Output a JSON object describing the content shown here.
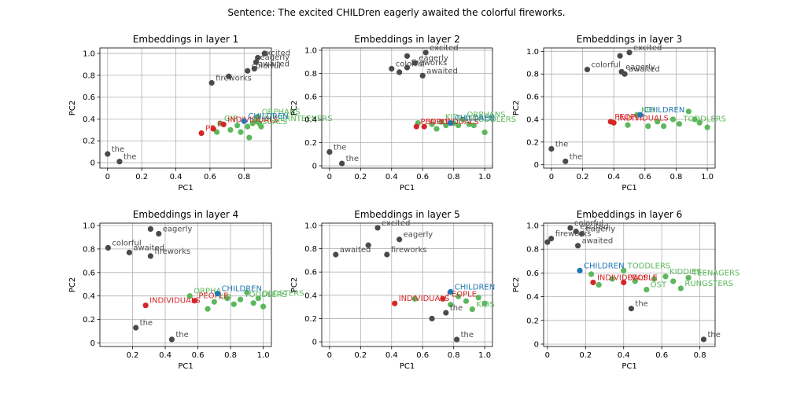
{
  "suptitle": "Sentence: The excited CHILDren eagerly awaited the colorful fireworks.",
  "colors": {
    "sentence": "#4a4a4a",
    "neighbor": "#5cb85c",
    "focus": "#1f77b4",
    "contrast": "#d62728",
    "grid": "#b0b0b0"
  },
  "chart_data": [
    {
      "type": "scatter",
      "title": "Embeddings in layer 1",
      "xlabel": "PC1",
      "ylabel": "PC2",
      "xlim": [
        -0.045,
        0.96
      ],
      "ylim": [
        -0.05,
        1.05
      ],
      "xticks": [
        0,
        0.2,
        0.4,
        0.6,
        0.8
      ],
      "yticks": [
        0,
        0.2,
        0.4,
        0.6,
        0.8,
        1.0
      ],
      "grid": true,
      "points": [
        {
          "x": 0.0,
          "y": 0.08,
          "g": "sentence",
          "label": "the"
        },
        {
          "x": 0.07,
          "y": 0.01,
          "g": "sentence",
          "label": "the"
        },
        {
          "x": 0.61,
          "y": 0.73,
          "g": "sentence",
          "label": "fireworks"
        },
        {
          "x": 0.71,
          "y": 0.79,
          "g": "sentence",
          "label": ""
        },
        {
          "x": 0.82,
          "y": 0.84,
          "g": "sentence",
          "label": "colorful"
        },
        {
          "x": 0.88,
          "y": 0.96,
          "g": "sentence",
          "label": "excited"
        },
        {
          "x": 0.92,
          "y": 1.0,
          "g": "sentence",
          "label": ""
        },
        {
          "x": 0.86,
          "y": 0.86,
          "g": "sentence",
          "label": "awaited"
        },
        {
          "x": 0.87,
          "y": 0.92,
          "g": "sentence",
          "label": "eagerly"
        },
        {
          "x": 0.55,
          "y": 0.27,
          "g": "contrast",
          "label": "PE"
        },
        {
          "x": 0.62,
          "y": 0.31,
          "g": "contrast",
          "label": "P"
        },
        {
          "x": 0.68,
          "y": 0.35,
          "g": "contrast",
          "label": "INDIVIDUALS"
        },
        {
          "x": 0.64,
          "y": 0.28,
          "g": "neighbor",
          "label": ""
        },
        {
          "x": 0.66,
          "y": 0.36,
          "g": "neighbor",
          "label": "GIR"
        },
        {
          "x": 0.72,
          "y": 0.3,
          "g": "neighbor",
          "label": ""
        },
        {
          "x": 0.76,
          "y": 0.34,
          "g": "neighbor",
          "label": ""
        },
        {
          "x": 0.78,
          "y": 0.28,
          "g": "neighbor",
          "label": ""
        },
        {
          "x": 0.82,
          "y": 0.33,
          "g": "neighbor",
          "label": "RASCALS"
        },
        {
          "x": 0.83,
          "y": 0.23,
          "g": "neighbor",
          "label": ""
        },
        {
          "x": 0.85,
          "y": 0.36,
          "g": "neighbor",
          "label": ""
        },
        {
          "x": 0.87,
          "y": 0.38,
          "g": "neighbor",
          "label": ""
        },
        {
          "x": 0.88,
          "y": 0.42,
          "g": "neighbor",
          "label": "ORPHANS"
        },
        {
          "x": 0.89,
          "y": 0.36,
          "g": "neighbor",
          "label": "OLDERNTEENERS"
        },
        {
          "x": 0.9,
          "y": 0.33,
          "g": "neighbor",
          "label": ""
        },
        {
          "x": 0.8,
          "y": 0.38,
          "g": "focus",
          "label": "CHILDREN"
        }
      ]
    },
    {
      "type": "scatter",
      "title": "Embeddings in layer 2",
      "xlabel": "PC1",
      "ylabel": "PC2",
      "xlim": [
        -0.05,
        1.05
      ],
      "ylim": [
        -0.02,
        1.02
      ],
      "xticks": [
        0,
        0.2,
        0.4,
        0.6,
        0.8,
        1.0
      ],
      "yticks": [
        0,
        0.2,
        0.4,
        0.6,
        0.8,
        1.0
      ],
      "grid": true,
      "points": [
        {
          "x": 0.0,
          "y": 0.12,
          "g": "sentence",
          "label": "the"
        },
        {
          "x": 0.08,
          "y": 0.02,
          "g": "sentence",
          "label": "the"
        },
        {
          "x": 0.4,
          "y": 0.84,
          "g": "sentence",
          "label": "colorful"
        },
        {
          "x": 0.45,
          "y": 0.81,
          "g": "sentence",
          "label": ""
        },
        {
          "x": 0.5,
          "y": 0.95,
          "g": "sentence",
          "label": ""
        },
        {
          "x": 0.55,
          "y": 0.89,
          "g": "sentence",
          "label": "eagerly"
        },
        {
          "x": 0.6,
          "y": 0.78,
          "g": "sentence",
          "label": "awaited"
        },
        {
          "x": 0.62,
          "y": 0.98,
          "g": "sentence",
          "label": "excited"
        },
        {
          "x": 0.5,
          "y": 0.85,
          "g": "sentence",
          "label": "fireworks"
        },
        {
          "x": 0.56,
          "y": 0.34,
          "g": "contrast",
          "label": "PEOPLE"
        },
        {
          "x": 0.61,
          "y": 0.34,
          "g": "contrast",
          "label": "INDIVIDUALS"
        },
        {
          "x": 0.57,
          "y": 0.37,
          "g": "neighbor",
          "label": ""
        },
        {
          "x": 0.66,
          "y": 0.36,
          "g": "neighbor",
          "label": ""
        },
        {
          "x": 0.69,
          "y": 0.32,
          "g": "neighbor",
          "label": ""
        },
        {
          "x": 0.72,
          "y": 0.38,
          "g": "neighbor",
          "label": "KID"
        },
        {
          "x": 0.75,
          "y": 0.35,
          "g": "neighbor",
          "label": ""
        },
        {
          "x": 0.8,
          "y": 0.37,
          "g": "neighbor",
          "label": "RASCALS"
        },
        {
          "x": 0.83,
          "y": 0.35,
          "g": "neighbor",
          "label": ""
        },
        {
          "x": 0.86,
          "y": 0.4,
          "g": "neighbor",
          "label": "ORPHANS"
        },
        {
          "x": 0.9,
          "y": 0.36,
          "g": "neighbor",
          "label": "TODDLERS"
        },
        {
          "x": 0.93,
          "y": 0.35,
          "g": "neighbor",
          "label": ""
        },
        {
          "x": 1.0,
          "y": 0.29,
          "g": "neighbor",
          "label": ""
        },
        {
          "x": 0.78,
          "y": 0.37,
          "g": "focus",
          "label": "CHILDREN"
        }
      ]
    },
    {
      "type": "scatter",
      "title": "Embeddings in layer 3",
      "xlabel": "PC1",
      "ylabel": "PC2",
      "xlim": [
        -0.05,
        1.05
      ],
      "ylim": [
        -0.03,
        1.03
      ],
      "xticks": [
        0,
        0.2,
        0.4,
        0.6,
        0.8,
        1.0
      ],
      "yticks": [
        0,
        0.2,
        0.4,
        0.6,
        0.8,
        1.0
      ],
      "grid": true,
      "points": [
        {
          "x": 0.0,
          "y": 0.14,
          "g": "sentence",
          "label": "the"
        },
        {
          "x": 0.09,
          "y": 0.03,
          "g": "sentence",
          "label": "the"
        },
        {
          "x": 0.23,
          "y": 0.84,
          "g": "sentence",
          "label": "colorful"
        },
        {
          "x": 0.44,
          "y": 0.96,
          "g": "sentence",
          "label": ""
        },
        {
          "x": 0.5,
          "y": 0.99,
          "g": "sentence",
          "label": "excited"
        },
        {
          "x": 0.45,
          "y": 0.82,
          "g": "sentence",
          "label": "eagerly"
        },
        {
          "x": 0.47,
          "y": 0.8,
          "g": "sentence",
          "label": "awaited"
        },
        {
          "x": 0.38,
          "y": 0.38,
          "g": "contrast",
          "label": "PEOPLE"
        },
        {
          "x": 0.4,
          "y": 0.37,
          "g": "contrast",
          "label": "INDIVIDUALS"
        },
        {
          "x": 0.49,
          "y": 0.35,
          "g": "neighbor",
          "label": ""
        },
        {
          "x": 0.55,
          "y": 0.44,
          "g": "neighbor",
          "label": "KID"
        },
        {
          "x": 0.62,
          "y": 0.34,
          "g": "neighbor",
          "label": ""
        },
        {
          "x": 0.68,
          "y": 0.38,
          "g": "neighbor",
          "label": ""
        },
        {
          "x": 0.72,
          "y": 0.34,
          "g": "neighbor",
          "label": ""
        },
        {
          "x": 0.78,
          "y": 0.4,
          "g": "neighbor",
          "label": ""
        },
        {
          "x": 0.82,
          "y": 0.36,
          "g": "neighbor",
          "label": "TODDLERS"
        },
        {
          "x": 0.88,
          "y": 0.47,
          "g": "neighbor",
          "label": ""
        },
        {
          "x": 0.92,
          "y": 0.4,
          "g": "neighbor",
          "label": ""
        },
        {
          "x": 0.95,
          "y": 0.37,
          "g": "neighbor",
          "label": ""
        },
        {
          "x": 1.0,
          "y": 0.33,
          "g": "neighbor",
          "label": ""
        },
        {
          "x": 0.57,
          "y": 0.44,
          "g": "focus",
          "label": "CHILDREN"
        }
      ]
    },
    {
      "type": "scatter",
      "title": "Embeddings in layer 4",
      "xlabel": "PC1",
      "ylabel": "PC2",
      "xlim": [
        0.0,
        1.05
      ],
      "ylim": [
        -0.03,
        1.02
      ],
      "xticks": [
        0.2,
        0.4,
        0.6,
        0.8,
        1.0
      ],
      "yticks": [
        0,
        0.2,
        0.4,
        0.6,
        0.8,
        1.0
      ],
      "grid": true,
      "points": [
        {
          "x": 0.05,
          "y": 0.81,
          "g": "sentence",
          "label": "colorful"
        },
        {
          "x": 0.18,
          "y": 0.77,
          "g": "sentence",
          "label": "awaited"
        },
        {
          "x": 0.22,
          "y": 0.13,
          "g": "sentence",
          "label": "the"
        },
        {
          "x": 0.31,
          "y": 0.97,
          "g": "sentence",
          "label": ""
        },
        {
          "x": 0.36,
          "y": 0.93,
          "g": "sentence",
          "label": "eagerly"
        },
        {
          "x": 0.31,
          "y": 0.74,
          "g": "sentence",
          "label": "fireworks"
        },
        {
          "x": 0.44,
          "y": 0.03,
          "g": "sentence",
          "label": "the"
        },
        {
          "x": 0.28,
          "y": 0.32,
          "g": "contrast",
          "label": "INDIVIDUALS"
        },
        {
          "x": 0.58,
          "y": 0.36,
          "g": "contrast",
          "label": "PEOPLE"
        },
        {
          "x": 0.55,
          "y": 0.4,
          "g": "neighbor",
          "label": "ORPHA"
        },
        {
          "x": 0.66,
          "y": 0.29,
          "g": "neighbor",
          "label": ""
        },
        {
          "x": 0.7,
          "y": 0.35,
          "g": "neighbor",
          "label": "KID"
        },
        {
          "x": 0.78,
          "y": 0.38,
          "g": "neighbor",
          "label": ""
        },
        {
          "x": 0.82,
          "y": 0.33,
          "g": "neighbor",
          "label": ""
        },
        {
          "x": 0.86,
          "y": 0.37,
          "g": "neighbor",
          "label": "TODDLERS"
        },
        {
          "x": 0.9,
          "y": 0.43,
          "g": "neighbor",
          "label": ""
        },
        {
          "x": 0.94,
          "y": 0.34,
          "g": "neighbor",
          "label": ""
        },
        {
          "x": 0.97,
          "y": 0.38,
          "g": "neighbor",
          "label": "OLDSTERS"
        },
        {
          "x": 1.0,
          "y": 0.31,
          "g": "neighbor",
          "label": ""
        },
        {
          "x": 0.72,
          "y": 0.42,
          "g": "focus",
          "label": "CHILDREN"
        }
      ]
    },
    {
      "type": "scatter",
      "title": "Embeddings in layer 5",
      "xlabel": "PC1",
      "ylabel": "PC2",
      "xlim": [
        -0.05,
        1.05
      ],
      "ylim": [
        -0.04,
        1.02
      ],
      "xticks": [
        0,
        0.2,
        0.4,
        0.6,
        0.8,
        1.0
      ],
      "yticks": [
        0,
        0.2,
        0.4,
        0.6,
        0.8,
        1.0
      ],
      "grid": true,
      "points": [
        {
          "x": 0.04,
          "y": 0.75,
          "g": "sentence",
          "label": "awaited"
        },
        {
          "x": 0.25,
          "y": 0.83,
          "g": "sentence",
          "label": ""
        },
        {
          "x": 0.31,
          "y": 0.98,
          "g": "sentence",
          "label": "excited"
        },
        {
          "x": 0.45,
          "y": 0.88,
          "g": "sentence",
          "label": "eagerly"
        },
        {
          "x": 0.37,
          "y": 0.75,
          "g": "sentence",
          "label": "fireworks"
        },
        {
          "x": 0.66,
          "y": 0.2,
          "g": "sentence",
          "label": ""
        },
        {
          "x": 0.75,
          "y": 0.25,
          "g": "sentence",
          "label": "the"
        },
        {
          "x": 0.82,
          "y": 0.02,
          "g": "sentence",
          "label": "the"
        },
        {
          "x": 0.42,
          "y": 0.33,
          "g": "contrast",
          "label": "INDIVIDUALS"
        },
        {
          "x": 0.73,
          "y": 0.37,
          "g": "contrast",
          "label": "PEOPLE"
        },
        {
          "x": 0.55,
          "y": 0.37,
          "g": "neighbor",
          "label": ""
        },
        {
          "x": 0.78,
          "y": 0.32,
          "g": "neighbor",
          "label": ""
        },
        {
          "x": 0.83,
          "y": 0.39,
          "g": "neighbor",
          "label": ""
        },
        {
          "x": 0.88,
          "y": 0.35,
          "g": "neighbor",
          "label": ""
        },
        {
          "x": 0.92,
          "y": 0.28,
          "g": "neighbor",
          "label": "KIDS"
        },
        {
          "x": 0.96,
          "y": 0.38,
          "g": "neighbor",
          "label": ""
        },
        {
          "x": 1.0,
          "y": 0.33,
          "g": "neighbor",
          "label": ""
        },
        {
          "x": 0.78,
          "y": 0.43,
          "g": "focus",
          "label": "CHILDREN"
        }
      ]
    },
    {
      "type": "scatter",
      "title": "Embeddings in layer 6",
      "xlabel": "PC1",
      "ylabel": "PC2",
      "xlim": [
        -0.02,
        0.88
      ],
      "ylim": [
        -0.02,
        1.02
      ],
      "xticks": [
        0,
        0.2,
        0.4,
        0.6,
        0.8
      ],
      "yticks": [
        0,
        0.2,
        0.4,
        0.6,
        0.8,
        1.0
      ],
      "grid": true,
      "points": [
        {
          "x": 0.0,
          "y": 0.86,
          "g": "sentence",
          "label": ""
        },
        {
          "x": 0.02,
          "y": 0.89,
          "g": "sentence",
          "label": "fireworks"
        },
        {
          "x": 0.12,
          "y": 0.98,
          "g": "sentence",
          "label": "colorful"
        },
        {
          "x": 0.15,
          "y": 0.95,
          "g": "sentence",
          "label": "excited"
        },
        {
          "x": 0.18,
          "y": 0.93,
          "g": "sentence",
          "label": "eagerly"
        },
        {
          "x": 0.16,
          "y": 0.83,
          "g": "sentence",
          "label": "awaited"
        },
        {
          "x": 0.44,
          "y": 0.3,
          "g": "sentence",
          "label": "the"
        },
        {
          "x": 0.82,
          "y": 0.04,
          "g": "sentence",
          "label": "the"
        },
        {
          "x": 0.24,
          "y": 0.52,
          "g": "contrast",
          "label": "INDIVIDUALS"
        },
        {
          "x": 0.4,
          "y": 0.52,
          "g": "contrast",
          "label": "PEOPLE"
        },
        {
          "x": 0.23,
          "y": 0.59,
          "g": "neighbor",
          "label": ""
        },
        {
          "x": 0.27,
          "y": 0.5,
          "g": "neighbor",
          "label": ""
        },
        {
          "x": 0.34,
          "y": 0.55,
          "g": "neighbor",
          "label": ""
        },
        {
          "x": 0.4,
          "y": 0.62,
          "g": "neighbor",
          "label": "TODDLERS"
        },
        {
          "x": 0.46,
          "y": 0.53,
          "g": "neighbor",
          "label": ""
        },
        {
          "x": 0.52,
          "y": 0.46,
          "g": "neighbor",
          "label": "OST"
        },
        {
          "x": 0.56,
          "y": 0.55,
          "g": "neighbor",
          "label": ""
        },
        {
          "x": 0.62,
          "y": 0.57,
          "g": "neighbor",
          "label": "KIDDIES"
        },
        {
          "x": 0.66,
          "y": 0.53,
          "g": "neighbor",
          "label": ""
        },
        {
          "x": 0.7,
          "y": 0.47,
          "g": "neighbor",
          "label": "RUNGSTERS"
        },
        {
          "x": 0.74,
          "y": 0.56,
          "g": "neighbor",
          "label": "TEENAGERS"
        },
        {
          "x": 0.17,
          "y": 0.62,
          "g": "focus",
          "label": "CHILDREN"
        }
      ]
    }
  ]
}
